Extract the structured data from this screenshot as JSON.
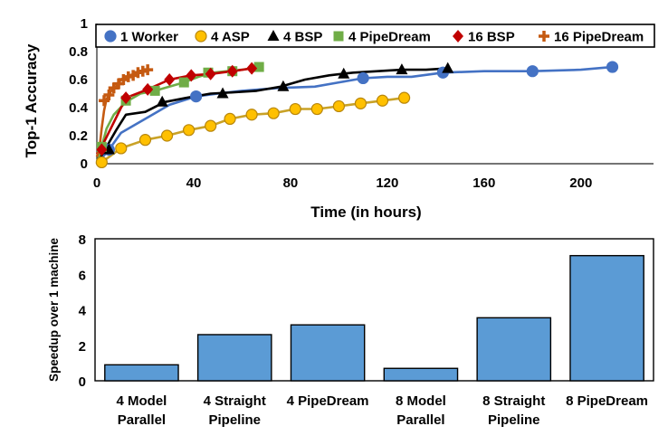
{
  "chart_data": [
    {
      "type": "line",
      "title": "",
      "xlabel": "Time (in hours)",
      "ylabel": "Top-1 Accuracy",
      "xlim": [
        0,
        230
      ],
      "ylim": [
        0,
        1
      ],
      "xticks": [
        0,
        40,
        80,
        120,
        160,
        200
      ],
      "yticks": [
        0,
        0.2,
        0.4,
        0.6,
        0.8,
        1
      ],
      "xtick_labels": [
        "0",
        "40",
        "80",
        "120",
        "160",
        "200"
      ],
      "ytick_labels": [
        "0",
        "0.2",
        "0.4",
        "0.6",
        "0.8",
        "1"
      ],
      "legend_position": "top",
      "series": [
        {
          "name": "1 Worker",
          "color": "#4472C4",
          "marker": "circle",
          "x": [
            0,
            5,
            10,
            20,
            30,
            41,
            50,
            60,
            75,
            90,
            100,
            110,
            120,
            130,
            143,
            160,
            180,
            200,
            213
          ],
          "y": [
            0.0,
            0.1,
            0.22,
            0.32,
            0.42,
            0.48,
            0.5,
            0.52,
            0.54,
            0.55,
            0.58,
            0.61,
            0.62,
            0.62,
            0.65,
            0.66,
            0.66,
            0.67,
            0.69
          ],
          "marker_x": [
            5,
            41,
            110,
            143,
            180,
            213
          ],
          "marker_y": [
            0.1,
            0.48,
            0.61,
            0.65,
            0.66,
            0.69
          ]
        },
        {
          "name": "4 ASP",
          "color": "#C9A227",
          "marker_fill": "#FFC000",
          "marker": "circle",
          "x": [
            2,
            10,
            20,
            29,
            38,
            47,
            55,
            64,
            73,
            82,
            91,
            100,
            109,
            118,
            127
          ],
          "y": [
            0.01,
            0.11,
            0.17,
            0.2,
            0.24,
            0.27,
            0.32,
            0.35,
            0.36,
            0.39,
            0.39,
            0.41,
            0.43,
            0.45,
            0.47
          ],
          "marker_x": [
            2,
            10,
            20,
            29,
            38,
            47,
            55,
            64,
            73,
            82,
            91,
            100,
            109,
            118,
            127
          ],
          "marker_y": [
            0.01,
            0.11,
            0.17,
            0.2,
            0.24,
            0.27,
            0.32,
            0.35,
            0.36,
            0.39,
            0.39,
            0.41,
            0.43,
            0.45,
            0.47
          ]
        },
        {
          "name": "4 BSP",
          "color": "#000000",
          "marker": "triangle",
          "x": [
            0,
            4,
            8,
            12,
            20,
            28,
            37,
            47,
            57,
            66,
            76,
            86,
            96,
            106,
            116,
            126,
            136,
            145
          ],
          "y": [
            0.0,
            0.12,
            0.24,
            0.35,
            0.37,
            0.44,
            0.47,
            0.5,
            0.51,
            0.52,
            0.55,
            0.6,
            0.63,
            0.65,
            0.66,
            0.67,
            0.67,
            0.68
          ],
          "marker_x": [
            5,
            27,
            52,
            77,
            102,
            126,
            145
          ],
          "marker_y": [
            0.1,
            0.44,
            0.5,
            0.55,
            0.64,
            0.67,
            0.68
          ]
        },
        {
          "name": "4 PipeDream",
          "color": "#70AD47",
          "marker": "square",
          "x": [
            0,
            2,
            4,
            7,
            12,
            18,
            24,
            30,
            36,
            42,
            48,
            54,
            60,
            67
          ],
          "y": [
            0.0,
            0.12,
            0.25,
            0.35,
            0.44,
            0.5,
            0.52,
            0.55,
            0.58,
            0.62,
            0.65,
            0.66,
            0.67,
            0.69
          ],
          "marker_x": [
            2,
            12,
            24,
            36,
            46,
            56,
            67
          ],
          "marker_y": [
            0.12,
            0.45,
            0.52,
            0.58,
            0.65,
            0.66,
            0.69
          ]
        },
        {
          "name": "16 BSP",
          "color": "#C00000",
          "marker": "diamond",
          "x": [
            0,
            2,
            5,
            8,
            12,
            17,
            22,
            28,
            34,
            40,
            46,
            52,
            58,
            64
          ],
          "y": [
            0.07,
            0.12,
            0.3,
            0.42,
            0.47,
            0.52,
            0.54,
            0.58,
            0.61,
            0.63,
            0.64,
            0.66,
            0.67,
            0.68
          ],
          "marker_x": [
            2,
            12,
            21,
            30,
            39,
            47,
            56,
            64
          ],
          "marker_y": [
            0.1,
            0.47,
            0.53,
            0.6,
            0.63,
            0.64,
            0.66,
            0.68
          ],
          "line_x": [
            0,
            2,
            12,
            21,
            30,
            39,
            47,
            56,
            64
          ],
          "line_y": [
            0.07,
            0.12,
            0.47,
            0.53,
            0.6,
            0.63,
            0.64,
            0.66,
            0.68
          ]
        },
        {
          "name": "16 PipeDream",
          "color": "#C55A11",
          "marker": "plus",
          "x": [
            0,
            1,
            2,
            3,
            4,
            5,
            6,
            8,
            10,
            12,
            14,
            16,
            18,
            20
          ],
          "y": [
            0.05,
            0.1,
            0.25,
            0.38,
            0.46,
            0.49,
            0.52,
            0.55,
            0.6,
            0.62,
            0.63,
            0.65,
            0.66,
            0.67
          ],
          "marker_x": [
            3,
            5,
            7,
            9,
            11,
            13,
            15,
            17,
            19,
            21
          ],
          "marker_y": [
            0.45,
            0.49,
            0.54,
            0.57,
            0.6,
            0.62,
            0.63,
            0.65,
            0.66,
            0.67
          ]
        }
      ]
    },
    {
      "type": "bar",
      "title": "",
      "xlabel": "",
      "ylabel": "Speedup over 1 machine",
      "ylim": [
        0,
        8
      ],
      "yticks": [
        0,
        2,
        4,
        6,
        8
      ],
      "ytick_labels": [
        "0",
        "2",
        "4",
        "6",
        "8"
      ],
      "bar_color": "#5B9BD5",
      "categories": [
        [
          "4 Model",
          "Parallel"
        ],
        [
          "4 Straight",
          "Pipeline"
        ],
        [
          "4 PipeDream"
        ],
        [
          "8 Model",
          "Parallel"
        ],
        [
          "8 Straight",
          "Pipeline"
        ],
        [
          "8 PipeDream"
        ]
      ],
      "values": [
        0.9,
        2.6,
        3.15,
        0.7,
        3.55,
        7.05
      ]
    }
  ]
}
